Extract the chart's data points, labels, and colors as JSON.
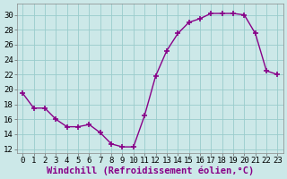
{
  "x": [
    0,
    1,
    2,
    3,
    4,
    5,
    6,
    7,
    8,
    9,
    10,
    11,
    12,
    13,
    14,
    15,
    16,
    17,
    18,
    19,
    20,
    21,
    22,
    23
  ],
  "y": [
    19.5,
    17.5,
    17.5,
    16.0,
    15.0,
    15.0,
    15.3,
    14.2,
    12.7,
    12.3,
    12.3,
    16.5,
    21.8,
    25.2,
    27.5,
    29.0,
    29.5,
    30.2,
    30.2,
    30.2,
    30.0,
    27.5,
    22.5,
    22.0
  ],
  "xlabel": "Windchill (Refroidissement éolien,°C)",
  "xlim": [
    -0.5,
    23.5
  ],
  "ylim": [
    11.5,
    31.5
  ],
  "yticks": [
    12,
    14,
    16,
    18,
    20,
    22,
    24,
    26,
    28,
    30
  ],
  "xticks": [
    0,
    1,
    2,
    3,
    4,
    5,
    6,
    7,
    8,
    9,
    10,
    11,
    12,
    13,
    14,
    15,
    16,
    17,
    18,
    19,
    20,
    21,
    22,
    23
  ],
  "line_color": "#880088",
  "marker": "+",
  "bg_color": "#cce8e8",
  "grid_color": "#99cccc",
  "xlabel_fontsize": 7.5,
  "tick_fontsize": 6.5,
  "line_width": 1.0,
  "marker_size": 4.0
}
